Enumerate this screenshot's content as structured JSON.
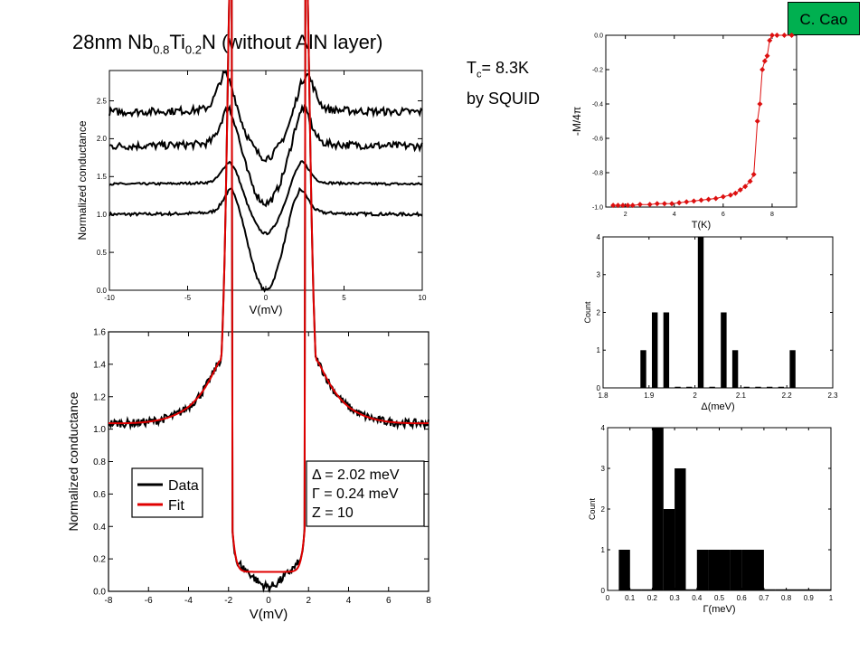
{
  "badge": "C. Cao",
  "title": {
    "prefix": "28nm  Nb",
    "sub1": "0.8",
    "mid": "Ti",
    "sub2": "0.2",
    "suffix": "N (without AlN layer)"
  },
  "tc": {
    "label_main": "T",
    "label_sub": "c",
    "label_rest": "= 8.3K",
    "method": "by SQUID"
  },
  "chart_data": [
    {
      "id": "stack",
      "type": "line",
      "xlabel": "V(mV)",
      "ylabel": "Normalized conductance",
      "xlim": [
        -10,
        10
      ],
      "ylim": [
        0.0,
        2.9
      ],
      "xticks": [
        -10,
        -5,
        0,
        5,
        10
      ],
      "yticks": [
        0.0,
        0.5,
        1.0,
        1.5,
        2.0,
        2.5
      ],
      "series": [
        {
          "values_desc": "offset",
          "params": {
            "base": 1.0,
            "depth": 1.0,
            "peak": 0.35,
            "peak_pos": 2.1,
            "noise": 0.02
          }
        },
        {
          "values_desc": "offset",
          "params": {
            "base": 1.4,
            "depth": 0.65,
            "peak": 0.3,
            "peak_pos": 2.2,
            "noise": 0.015
          }
        },
        {
          "values_desc": "offset",
          "params": {
            "base": 1.9,
            "depth": 0.75,
            "peak": 0.5,
            "peak_pos": 2.3,
            "noise": 0.05
          }
        },
        {
          "values_desc": "offset",
          "params": {
            "base": 2.35,
            "depth": 0.6,
            "peak": 0.5,
            "peak_pos": 2.5,
            "noise": 0.05
          }
        }
      ]
    },
    {
      "id": "fit",
      "type": "line",
      "xlabel": "V(mV)",
      "ylabel": "Normalized conductance",
      "xlim": [
        -8,
        8
      ],
      "ylim": [
        0.0,
        1.6
      ],
      "xticks": [
        -8,
        -6,
        -4,
        -2,
        0,
        2,
        4,
        6,
        8
      ],
      "yticks": [
        0.0,
        0.2,
        0.4,
        0.6,
        0.8,
        1.0,
        1.2,
        1.4,
        1.6
      ],
      "legend": [
        "Data",
        "Fit"
      ],
      "legend_colors": [
        "#000000",
        "#e00000"
      ],
      "annotation": [
        "Δ = 2.02 meV",
        "Γ = 0.24 meV",
        "Z = 10"
      ],
      "fit_params": {
        "delta": 2.02,
        "gamma": 0.24,
        "z": 10
      }
    },
    {
      "id": "squid",
      "type": "line",
      "xlabel": "T(K)",
      "ylabel": "-M/4π",
      "xlim": [
        1.2,
        9.0
      ],
      "ylim": [
        -1.0,
        0.0
      ],
      "xticks": [
        2,
        4,
        6,
        8
      ],
      "yticks": [
        0.0,
        -0.2,
        -0.4,
        -0.6,
        -0.8,
        -1.0
      ],
      "ytick_labels": [
        "0.0",
        "-0.2",
        "-0.4",
        "-0.6",
        "-0.8",
        "-1.0"
      ],
      "color": "#dd1010",
      "x": [
        1.5,
        1.7,
        1.9,
        2.1,
        2.3,
        2.6,
        3.0,
        3.3,
        3.6,
        3.9,
        4.2,
        4.5,
        4.8,
        5.1,
        5.4,
        5.7,
        6.0,
        6.3,
        6.5,
        6.7,
        6.9,
        7.1,
        7.25,
        7.4,
        7.5,
        7.6,
        7.7,
        7.8,
        7.9,
        8.0,
        8.2,
        8.5,
        8.8
      ],
      "y": [
        -0.99,
        -0.99,
        -0.99,
        -0.99,
        -0.99,
        -0.985,
        -0.985,
        -0.98,
        -0.98,
        -0.98,
        -0.975,
        -0.97,
        -0.965,
        -0.96,
        -0.955,
        -0.95,
        -0.94,
        -0.93,
        -0.92,
        -0.9,
        -0.88,
        -0.85,
        -0.81,
        -0.5,
        -0.4,
        -0.2,
        -0.15,
        -0.12,
        -0.03,
        0.0,
        0.0,
        0.0,
        0.0
      ]
    },
    {
      "id": "delta_hist",
      "type": "bar",
      "xlabel": "Δ(meV)",
      "ylabel": "Count",
      "xlim": [
        1.8,
        2.3
      ],
      "ylim": [
        0,
        4
      ],
      "xticks": [
        1.8,
        1.9,
        2.0,
        2.1,
        2.2,
        2.3
      ],
      "xtick_labels": [
        "1.8",
        "1.9",
        "2",
        "2.1",
        "2.2",
        "2.3"
      ],
      "yticks": [
        0,
        1,
        2,
        3,
        4
      ],
      "bin_width": 0.0125,
      "x": [
        1.8875,
        1.9125,
        1.9375,
        1.9625,
        1.9875,
        2.0125,
        2.0375,
        2.0625,
        2.0875,
        2.1125,
        2.1375,
        2.1625,
        2.1875,
        2.2125
      ],
      "values": [
        1,
        2,
        2,
        0,
        0,
        4,
        0,
        2,
        1,
        0,
        0,
        0,
        0,
        1
      ]
    },
    {
      "id": "gamma_hist",
      "type": "bar",
      "xlabel": "Γ(meV)",
      "ylabel": "Count",
      "xlim": [
        0,
        1
      ],
      "ylim": [
        0,
        4
      ],
      "xticks": [
        0,
        0.1,
        0.2,
        0.3,
        0.4,
        0.5,
        0.6,
        0.7,
        0.8,
        0.9,
        1
      ],
      "xtick_labels": [
        "0",
        "0.1",
        "0.2",
        "0.3",
        "0.4",
        "0.5",
        "0.6",
        "0.7",
        "0.8",
        "0.9",
        "1"
      ],
      "yticks": [
        0,
        1,
        2,
        3,
        4
      ],
      "bin_width": 0.05,
      "x": [
        0.075,
        0.125,
        0.175,
        0.225,
        0.275,
        0.325,
        0.375,
        0.425,
        0.475,
        0.525,
        0.575,
        0.625,
        0.675,
        0.725,
        0.775,
        0.825,
        0.875,
        0.925,
        0.975
      ],
      "values": [
        1,
        0,
        0,
        4,
        2,
        3,
        0,
        1,
        1,
        1,
        1,
        1,
        1,
        0,
        0,
        0,
        0,
        0,
        0
      ]
    }
  ]
}
